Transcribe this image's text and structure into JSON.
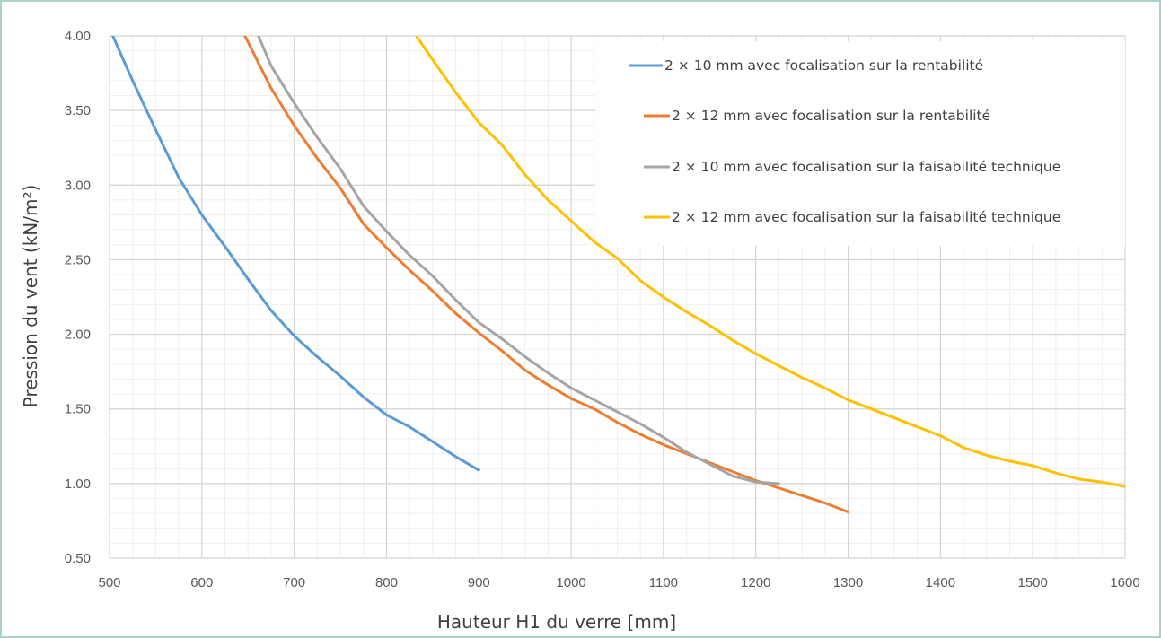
{
  "chart_data": {
    "type": "line",
    "xlabel": "Hauteur H1 du verre [mm]",
    "ylabel": "Pression du vent (kN/m²)",
    "xlim": [
      500,
      1600
    ],
    "ylim": [
      0.5,
      4.0
    ],
    "x_ticks": [
      "500",
      "600",
      "700",
      "800",
      "900",
      "1000",
      "1100",
      "1200",
      "1300",
      "1400",
      "1500",
      "1600"
    ],
    "y_ticks": [
      "0.50",
      "1.00",
      "1.50",
      "2.00",
      "2.50",
      "3.00",
      "3.50",
      "4.00"
    ],
    "grid": true,
    "legend_position": "top-right",
    "series": [
      {
        "name": "2 × 10 mm avec focalisation sur la rentabilité",
        "color": "#5b9bd5",
        "x": [
          500,
          525,
          550,
          575,
          600,
          625,
          650,
          675,
          700,
          725,
          750,
          775,
          800,
          825,
          850,
          875,
          900
        ],
        "y": [
          4.05,
          3.7,
          3.37,
          3.05,
          2.8,
          2.59,
          2.37,
          2.16,
          1.99,
          1.85,
          1.72,
          1.58,
          1.46,
          1.38,
          1.28,
          1.18,
          1.09
        ]
      },
      {
        "name": "2 × 12 mm avec focalisation sur la rentabilité",
        "color": "#ed7d31",
        "x": [
          645,
          675,
          700,
          725,
          750,
          775,
          800,
          825,
          850,
          875,
          900,
          925,
          950,
          975,
          1000,
          1025,
          1050,
          1075,
          1100,
          1125,
          1150,
          1175,
          1200,
          1225,
          1250,
          1275,
          1300
        ],
        "y": [
          4.02,
          3.65,
          3.4,
          3.18,
          2.98,
          2.74,
          2.58,
          2.43,
          2.29,
          2.14,
          2.01,
          1.89,
          1.76,
          1.66,
          1.57,
          1.5,
          1.41,
          1.33,
          1.26,
          1.2,
          1.14,
          1.08,
          1.02,
          0.97,
          0.92,
          0.87,
          0.81
        ]
      },
      {
        "name": "2 × 10 mm avec focalisation sur la faisabilité technique",
        "color": "#a5a5a5",
        "x": [
          660,
          675,
          700,
          725,
          750,
          775,
          800,
          825,
          850,
          875,
          900,
          925,
          950,
          975,
          1000,
          1025,
          1050,
          1075,
          1100,
          1125,
          1150,
          1175,
          1200,
          1225
        ],
        "y": [
          4.02,
          3.8,
          3.55,
          3.32,
          3.11,
          2.86,
          2.69,
          2.53,
          2.39,
          2.23,
          2.08,
          1.97,
          1.85,
          1.74,
          1.64,
          1.56,
          1.48,
          1.4,
          1.31,
          1.21,
          1.13,
          1.05,
          1.01,
          1.0
        ]
      },
      {
        "name": "2 × 12 mm avec focalisation sur la faisabilité technique",
        "color": "#ffc000",
        "x": [
          830,
          850,
          875,
          900,
          925,
          950,
          975,
          1000,
          1025,
          1050,
          1075,
          1100,
          1125,
          1150,
          1175,
          1200,
          1225,
          1250,
          1275,
          1300,
          1325,
          1350,
          1375,
          1400,
          1425,
          1450,
          1475,
          1500,
          1525,
          1550,
          1575,
          1600
        ],
        "y": [
          4.02,
          3.84,
          3.62,
          3.42,
          3.27,
          3.07,
          2.9,
          2.76,
          2.62,
          2.51,
          2.36,
          2.25,
          2.15,
          2.06,
          1.96,
          1.87,
          1.79,
          1.71,
          1.64,
          1.56,
          1.5,
          1.44,
          1.38,
          1.32,
          1.24,
          1.19,
          1.15,
          1.12,
          1.07,
          1.03,
          1.01,
          0.98
        ]
      }
    ]
  }
}
